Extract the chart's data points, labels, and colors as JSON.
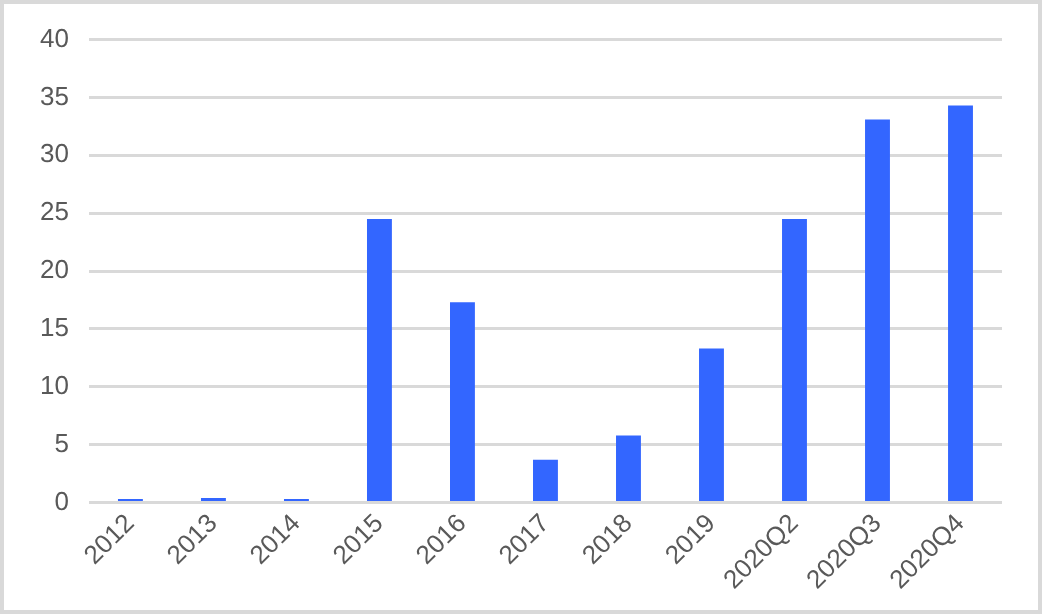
{
  "chart_data": {
    "type": "bar",
    "categories": [
      "2012",
      "2013",
      "2014",
      "2015",
      "2016",
      "2017",
      "2018",
      "2019",
      "2020Q2",
      "2020Q3",
      "2020Q4"
    ],
    "values": [
      0.3,
      0.4,
      0.3,
      24.5,
      17.3,
      3.7,
      5.8,
      13.3,
      24.5,
      33.1,
      34.3
    ],
    "color": "#3366ff",
    "ylim": [
      0,
      40
    ],
    "yticks": [
      0,
      5,
      10,
      15,
      20,
      25,
      30,
      35,
      40
    ],
    "grid": "y",
    "legend": false
  }
}
